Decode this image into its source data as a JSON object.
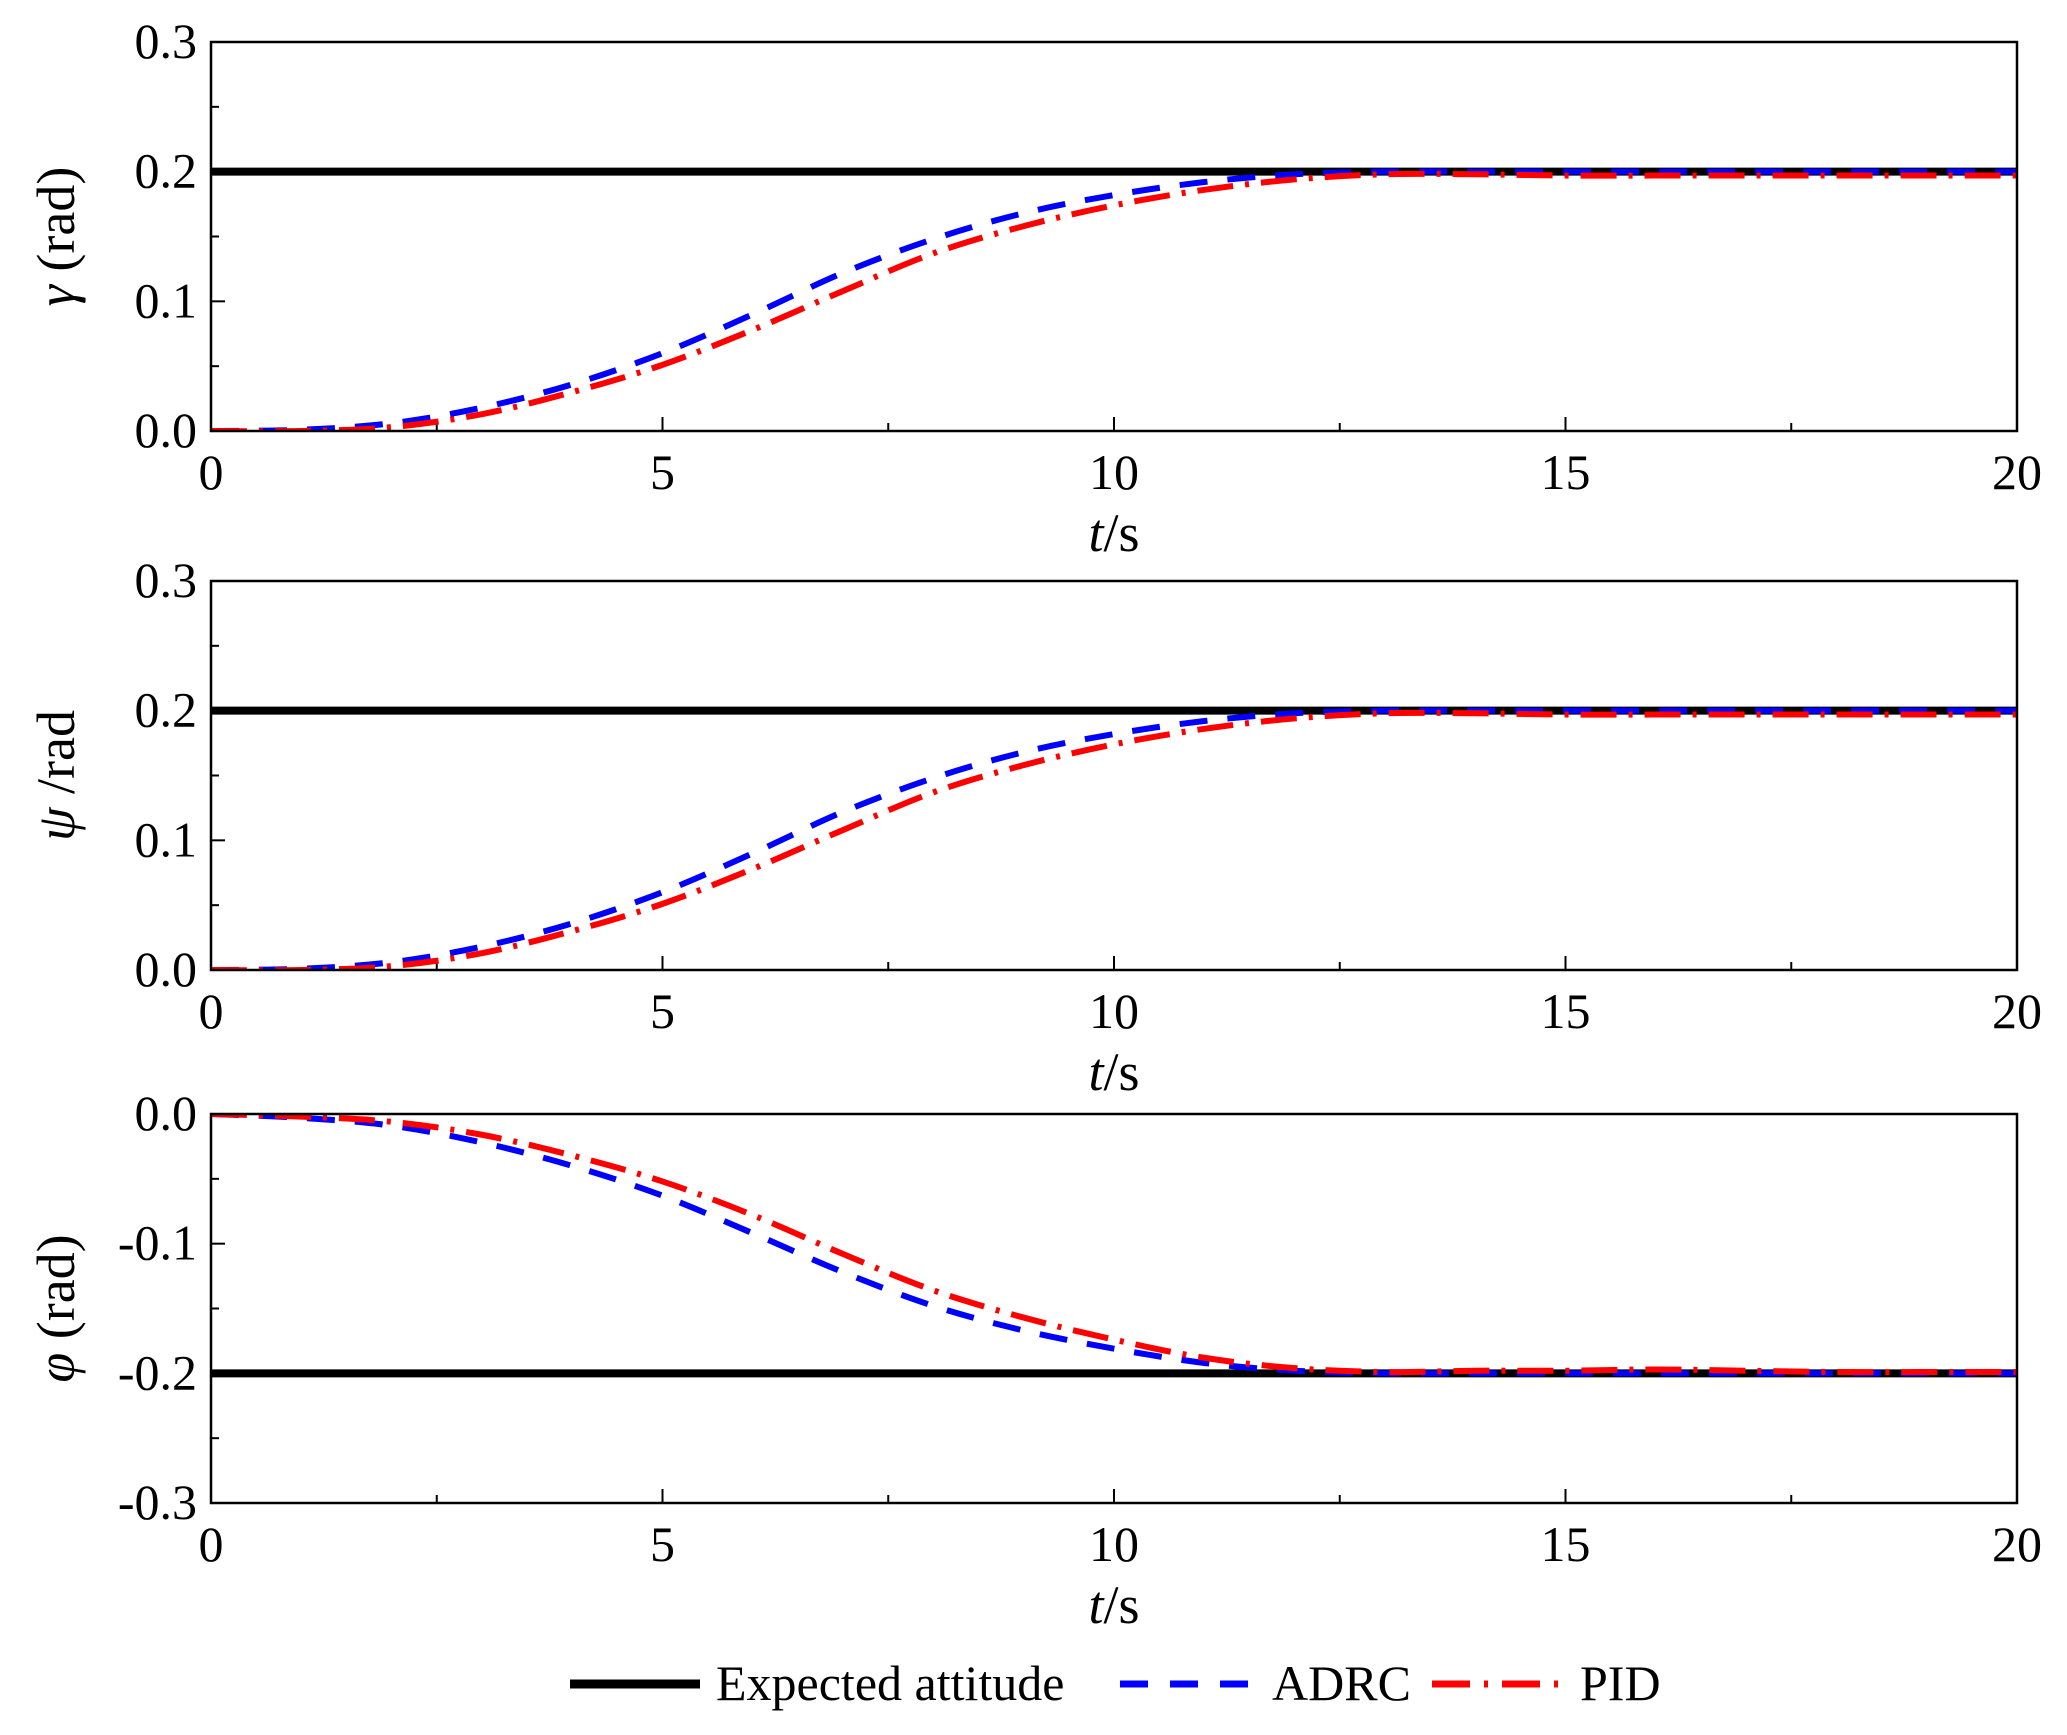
{
  "chart_data": [
    {
      "type": "line",
      "ylabel_symbol": "γ",
      "ylabel_unit": " (rad)",
      "xlabel_italic": "t",
      "xlabel_unit": "/s",
      "xlim": [
        0,
        20
      ],
      "ylim": [
        0.0,
        0.3
      ],
      "xticks": [
        "0",
        "5",
        "10",
        "15",
        "20"
      ],
      "yticks": [
        "0.0",
        "0.1",
        "0.2",
        "0.3"
      ],
      "reference": 0.2,
      "x": [
        0,
        1,
        2,
        3,
        4,
        5,
        6,
        7,
        8,
        9,
        10,
        11,
        12,
        13,
        14,
        15,
        16,
        17,
        18,
        19,
        20
      ],
      "series": [
        {
          "name": "ADRC",
          "values": [
            0,
            0.001,
            0.006,
            0.018,
            0.036,
            0.06,
            0.09,
            0.122,
            0.148,
            0.168,
            0.182,
            0.192,
            0.198,
            0.2,
            0.2,
            0.2,
            0.2,
            0.2,
            0.2,
            0.2,
            0.2
          ]
        },
        {
          "name": "PID",
          "values": [
            0,
            0,
            0.003,
            0.013,
            0.03,
            0.051,
            0.078,
            0.108,
            0.137,
            0.158,
            0.174,
            0.186,
            0.194,
            0.198,
            0.198,
            0.197,
            0.197,
            0.197,
            0.197,
            0.197,
            0.197
          ]
        }
      ]
    },
    {
      "type": "line",
      "ylabel_symbol": "ψ",
      "ylabel_unit": " /rad",
      "xlabel_italic": "t",
      "xlabel_unit": "/s",
      "xlim": [
        0,
        20
      ],
      "ylim": [
        0.0,
        0.3
      ],
      "xticks": [
        "0",
        "5",
        "10",
        "15",
        "20"
      ],
      "yticks": [
        "0.0",
        "0.1",
        "0.2",
        "0.3"
      ],
      "reference": 0.2,
      "x": [
        0,
        1,
        2,
        3,
        4,
        5,
        6,
        7,
        8,
        9,
        10,
        11,
        12,
        13,
        14,
        15,
        16,
        17,
        18,
        19,
        20
      ],
      "series": [
        {
          "name": "ADRC",
          "values": [
            0,
            0.001,
            0.006,
            0.018,
            0.036,
            0.06,
            0.09,
            0.122,
            0.148,
            0.168,
            0.182,
            0.192,
            0.198,
            0.2,
            0.2,
            0.2,
            0.2,
            0.2,
            0.2,
            0.2,
            0.2
          ]
        },
        {
          "name": "PID",
          "values": [
            0,
            0,
            0.003,
            0.013,
            0.03,
            0.051,
            0.078,
            0.108,
            0.137,
            0.158,
            0.174,
            0.186,
            0.194,
            0.198,
            0.198,
            0.197,
            0.197,
            0.197,
            0.197,
            0.197,
            0.197
          ]
        }
      ]
    },
    {
      "type": "line",
      "ylabel_symbol": "φ",
      "ylabel_unit": " (rad)",
      "xlabel_italic": "t",
      "xlabel_unit": "/s",
      "xlim": [
        0,
        20
      ],
      "ylim": [
        -0.3,
        0.0
      ],
      "xticks": [
        "0",
        "5",
        "10",
        "15",
        "20"
      ],
      "yticks": [
        "-0.3",
        "-0.2",
        "-0.1",
        "0.0"
      ],
      "reference": -0.2,
      "x": [
        0,
        1,
        2,
        3,
        4,
        5,
        6,
        7,
        8,
        9,
        10,
        11,
        12,
        13,
        14,
        15,
        16,
        17,
        18,
        19,
        20
      ],
      "series": [
        {
          "name": "ADRC",
          "values": [
            0,
            -0.003,
            -0.009,
            -0.022,
            -0.04,
            -0.063,
            -0.092,
            -0.122,
            -0.148,
            -0.167,
            -0.181,
            -0.192,
            -0.198,
            -0.2,
            -0.2,
            -0.2,
            -0.2,
            -0.2,
            -0.2,
            -0.2,
            -0.2
          ]
        },
        {
          "name": "PID",
          "values": [
            0,
            -0.002,
            -0.006,
            -0.016,
            -0.032,
            -0.052,
            -0.078,
            -0.108,
            -0.136,
            -0.157,
            -0.174,
            -0.188,
            -0.196,
            -0.199,
            -0.198,
            -0.198,
            -0.197,
            -0.198,
            -0.199,
            -0.199,
            -0.199
          ]
        }
      ]
    }
  ],
  "legend": {
    "position": "bottom",
    "items": [
      {
        "label": "Expected attitude",
        "color": "#000000",
        "style": "solid"
      },
      {
        "label": "ADRC",
        "color": "#0000ff",
        "style": "dash"
      },
      {
        "label": "PID",
        "color": "#ff0000",
        "style": "dash-dot"
      }
    ]
  }
}
